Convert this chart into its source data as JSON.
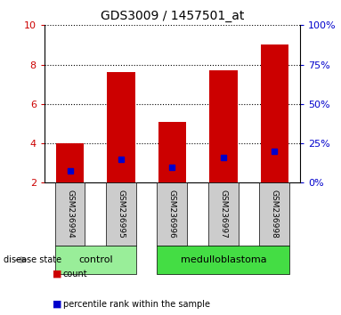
{
  "title": "GDS3009 / 1457501_at",
  "samples": [
    "GSM236994",
    "GSM236995",
    "GSM236996",
    "GSM236997",
    "GSM236998"
  ],
  "bar_heights": [
    4.0,
    7.6,
    5.1,
    7.7,
    9.0
  ],
  "blue_marker_y": [
    2.6,
    3.2,
    2.8,
    3.3,
    3.6
  ],
  "bar_color": "#cc0000",
  "blue_color": "#0000cc",
  "bar_bottom": 2.0,
  "ylim_left": [
    2,
    10
  ],
  "ylim_right": [
    0,
    100
  ],
  "yticks_left": [
    2,
    4,
    6,
    8,
    10
  ],
  "yticks_right": [
    0,
    25,
    50,
    75,
    100
  ],
  "groups": [
    {
      "label": "control",
      "indices": [
        0,
        1
      ],
      "color": "#99ee99"
    },
    {
      "label": "medulloblastoma",
      "indices": [
        2,
        3,
        4
      ],
      "color": "#44dd44"
    }
  ],
  "disease_state_label": "disease state",
  "legend_count_label": "count",
  "legend_percentile_label": "percentile rank within the sample",
  "bar_width": 0.55,
  "tick_area_color": "#cccccc",
  "left_tick_color": "#cc0000",
  "right_tick_color": "#0000cc"
}
